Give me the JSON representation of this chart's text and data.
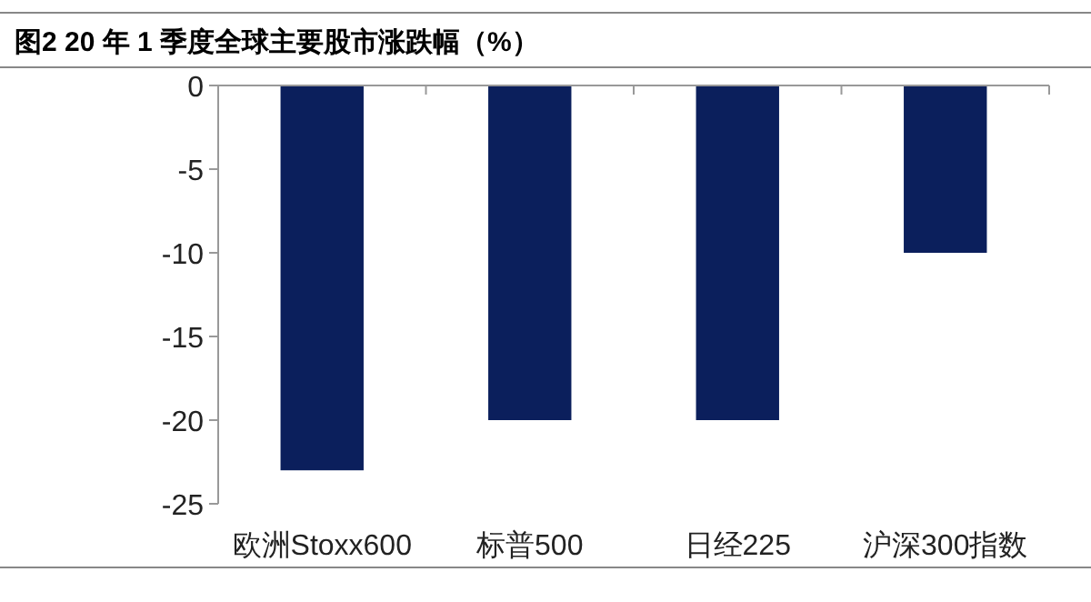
{
  "chart_data": {
    "type": "bar",
    "title": "图2  20 年 1 季度全球主要股市涨跌幅（%）",
    "categories": [
      "欧洲Stoxx600",
      "标普500",
      "日经225",
      "沪深300指数"
    ],
    "values": [
      -23,
      -20,
      -20,
      -10
    ],
    "color": "#0b1f5c",
    "ylim": [
      -25,
      0
    ],
    "yticks": [
      0,
      -5,
      -10,
      -15,
      -20,
      -25
    ],
    "grid": false
  }
}
